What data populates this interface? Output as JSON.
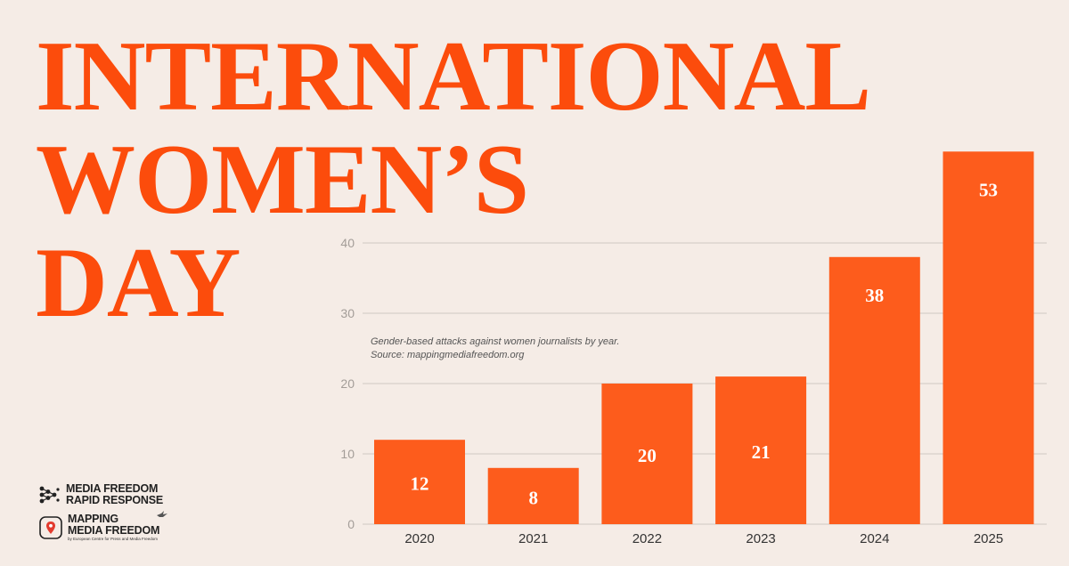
{
  "headline": [
    "INTERNATIONAL",
    "WOMEN’S",
    "DAY"
  ],
  "caption": {
    "line1": "Gender-based attacks against women journalists by year.",
    "line2": "Source: mappingmediafreedom.org"
  },
  "logos": {
    "mfrr_line1": "MEDIA FREEDOM",
    "mfrr_line2": "RAPID RESPONSE",
    "mmf_line1": "MAPPING",
    "mmf_line2": "MEDIA FREEDOM",
    "mmf_tagline": "by European Centre for Press and Media Freedom"
  },
  "colors": {
    "background": "#f5ece6",
    "accent": "#fc4c0c",
    "bar": "#fd5c1c",
    "grid": "#cfc7c1"
  },
  "chart_data": {
    "type": "bar",
    "categories": [
      "2020",
      "2021",
      "2022",
      "2023",
      "2024",
      "2025"
    ],
    "values": [
      12,
      8,
      20,
      21,
      38,
      53
    ],
    "yticks": [
      0,
      10,
      20,
      30,
      40
    ],
    "ylim": [
      0,
      53
    ],
    "grid": true,
    "data_labels": true
  }
}
